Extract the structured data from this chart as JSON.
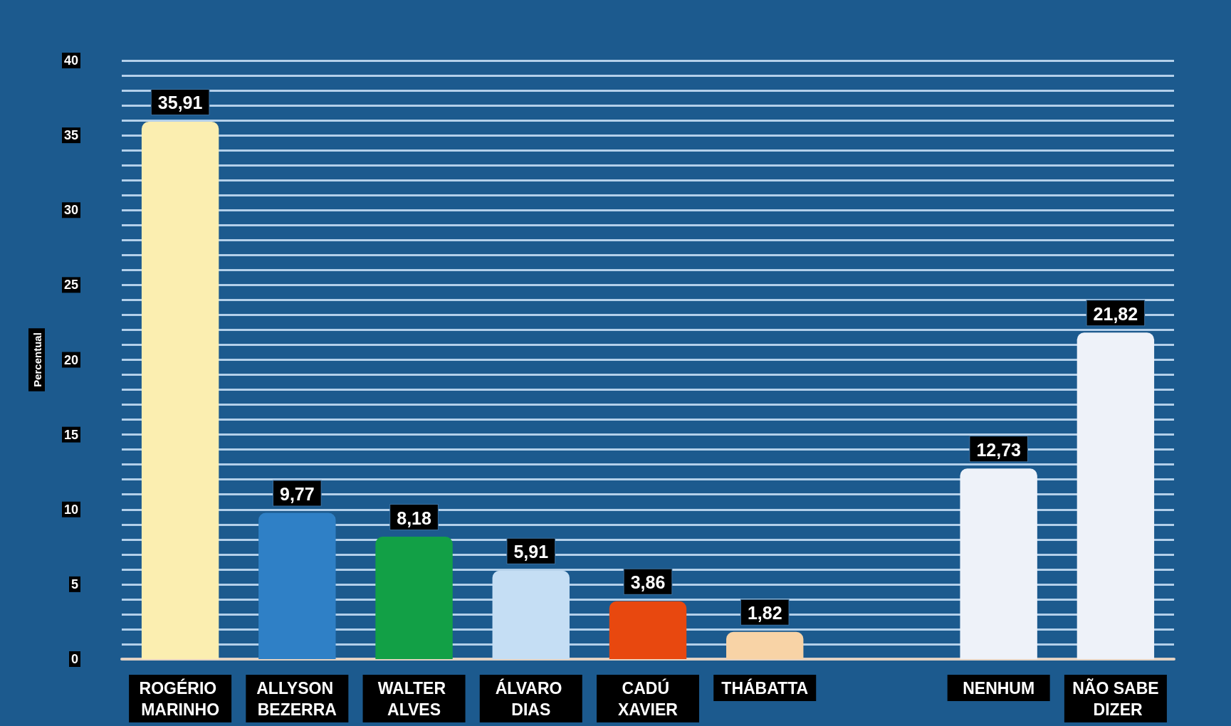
{
  "chart_data": {
    "type": "bar",
    "ylabel": "Percentual",
    "categories": [
      "ROGÉRIO MARINHO",
      "ALLYSON BEZERRA",
      "WALTER ALVES",
      "ÁLVARO DIAS",
      "CADÚ XAVIER",
      "THÁBATTA",
      null,
      "NENHUM",
      "NÃO SABE DIZER"
    ],
    "values": [
      35.91,
      9.77,
      8.18,
      5.91,
      3.86,
      1.82,
      null,
      12.73,
      21.82
    ],
    "colors": [
      "#fbeeb0",
      "#2f80c6",
      "#12a046",
      "#c5def4",
      "#e8480f",
      "#f8d3a6",
      null,
      "#eef2f9",
      "#eef2f9"
    ],
    "value_labels": [
      "35,91",
      "9,77",
      "8,18",
      "5,91",
      "3,86",
      "1,82",
      null,
      "12,73",
      "21,82"
    ],
    "ylim": [
      0,
      40
    ],
    "yticks": [
      0,
      {
        "value": 1,
        "label": null
      },
      {
        "value": 2,
        "label": null
      },
      {
        "value": 3,
        "label": null
      },
      {
        "value": 4,
        "label": null
      },
      5,
      {
        "value": 6,
        "label": null
      },
      {
        "value": 7,
        "label": null
      },
      {
        "value": 8,
        "label": null
      },
      {
        "value": 9,
        "label": null
      },
      10,
      {
        "value": 11,
        "label": null
      },
      {
        "value": 12,
        "label": null
      },
      {
        "value": 13,
        "label": null
      },
      {
        "value": 14,
        "label": null
      },
      15,
      {
        "value": 16,
        "label": null
      },
      {
        "value": 17,
        "label": null
      },
      {
        "value": 18,
        "label": null
      },
      {
        "value": 19,
        "label": null
      },
      20,
      {
        "value": 21,
        "label": null
      },
      {
        "value": 22,
        "label": null
      },
      {
        "value": 23,
        "label": null
      },
      {
        "value": 24,
        "label": null
      },
      25,
      {
        "value": 26,
        "label": null
      },
      {
        "value": 27,
        "label": null
      },
      {
        "value": 28,
        "label": null
      },
      {
        "value": 29,
        "label": null
      },
      30,
      {
        "value": 31,
        "label": null
      },
      {
        "value": 32,
        "label": null
      },
      {
        "value": 33,
        "label": null
      },
      {
        "value": 34,
        "label": null
      },
      35,
      {
        "value": 36,
        "label": null
      },
      {
        "value": 37,
        "label": null
      },
      {
        "value": 38,
        "label": null
      },
      {
        "value": 39,
        "label": null
      },
      40
    ],
    "grid": "y"
  }
}
